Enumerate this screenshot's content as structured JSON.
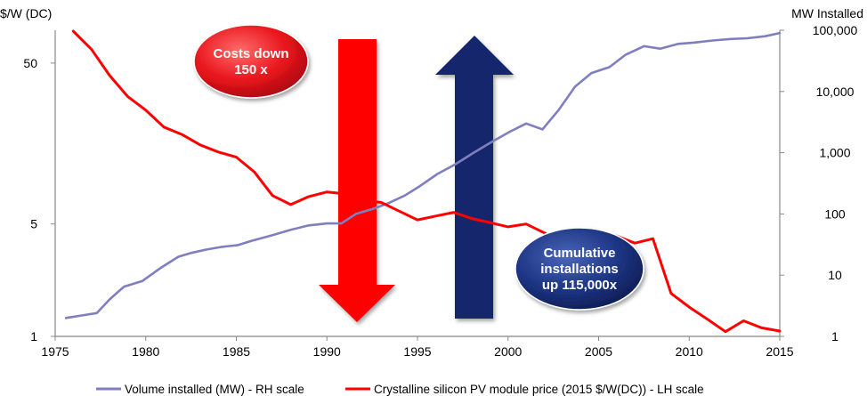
{
  "chart_data": {
    "type": "line",
    "left_axis": {
      "label": "$/W (DC)",
      "scale": "log",
      "range": [
        1,
        80
      ],
      "ticks": [
        1,
        5,
        50
      ],
      "tick_labels": [
        "1",
        "5",
        "50"
      ]
    },
    "right_axis": {
      "label": "MW Installed",
      "scale": "log",
      "range": [
        1,
        100000
      ],
      "ticks": [
        1,
        10,
        100,
        1000,
        10000,
        100000
      ],
      "tick_labels": [
        "1",
        "10",
        "100",
        "1,000",
        "10,000",
        "100,000"
      ]
    },
    "x_axis": {
      "range": [
        1975,
        2015
      ],
      "ticks": [
        1975,
        1980,
        1985,
        1990,
        1995,
        2000,
        2005,
        2010,
        2015
      ],
      "tick_labels": [
        "1975",
        "1980",
        "1985",
        "1990",
        "1995",
        "2000",
        "2005",
        "2010",
        "2015"
      ]
    },
    "series": [
      {
        "name": "Volume installed (MW) - RH scale",
        "color": "#7f7fbf",
        "axis": "right",
        "x": [
          1975.6,
          1976.5,
          1977.3,
          1978,
          1978.8,
          1979.8,
          1980.8,
          1981.8,
          1982.5,
          1983.3,
          1984.2,
          1985.1,
          1985.8,
          1987,
          1988,
          1989,
          1990,
          1990.8,
          1991.6,
          1992.5,
          1993.4,
          1994.3,
          1995.1,
          1996.1,
          1997.1,
          1998.1,
          1999.1,
          2000.1,
          2001,
          2001.9,
          2002.8,
          2003.7,
          2004.6,
          2005.6,
          2006.5,
          2007.5,
          2008.4,
          2009.4,
          2010.3,
          2011.3,
          2012.3,
          2013.2,
          2014.2,
          2015
        ],
        "values": [
          2,
          2.2,
          2.4,
          4,
          6.5,
          8,
          13,
          20,
          23,
          26,
          29,
          31,
          36,
          45,
          55,
          65,
          70,
          70,
          100,
          120,
          150,
          200,
          280,
          450,
          650,
          1000,
          1500,
          2200,
          3000,
          2400,
          5000,
          12000,
          20000,
          25000,
          40000,
          55000,
          50000,
          60000,
          63000,
          68000,
          72000,
          74000,
          80000,
          90000
        ]
      },
      {
        "name": "Crystalline silicon PV module price (2015 $/W(DC)) - LH scale",
        "color": "#ff0000",
        "axis": "left",
        "x": [
          1976,
          1977,
          1978,
          1979,
          1980,
          1981,
          1982,
          1983,
          1984,
          1985,
          1986,
          1987,
          1988,
          1989,
          1990,
          1991,
          1992,
          1993,
          1994,
          1995,
          1996,
          1997,
          1998,
          1999,
          2000,
          2001,
          2002,
          2003,
          2004,
          2005,
          2006,
          2007,
          2008,
          2009,
          2010,
          2011,
          2012,
          2013,
          2014,
          2015
        ],
        "values": [
          79,
          61,
          42,
          31,
          25.5,
          20,
          18,
          15.5,
          14,
          13,
          10.5,
          7.5,
          6.6,
          7.4,
          7.9,
          7.7,
          7,
          6.8,
          6,
          5.3,
          5.6,
          5.9,
          5.4,
          5.1,
          4.8,
          5,
          4.4,
          3.9,
          3.85,
          4,
          4.2,
          3.8,
          4.05,
          1.85,
          1.52,
          1.28,
          1.07,
          1.25,
          1.13,
          1.08
        ]
      }
    ],
    "annotations": [
      {
        "text": [
          "Costs down",
          "150 x"
        ],
        "color": "#e8141b"
      },
      {
        "text": [
          "Cumulative",
          "installations",
          "up 115,000x"
        ],
        "color": "#13256d"
      }
    ],
    "legend_placement": "bottom",
    "grid": false
  }
}
